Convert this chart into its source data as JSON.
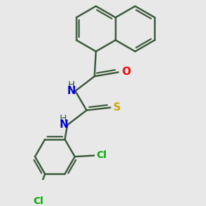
{
  "background_color": "#e8e8e8",
  "bond_color": "#3a5a3a",
  "bond_width": 1.8,
  "atom_colors": {
    "O": "#ff0000",
    "N": "#0000cd",
    "S": "#ccaa00",
    "Cl": "#00aa00",
    "C": "#3a5a3a",
    "H": "#3a5a3a"
  },
  "font_size": 11,
  "figsize": [
    3.0,
    3.0
  ],
  "dpi": 100
}
